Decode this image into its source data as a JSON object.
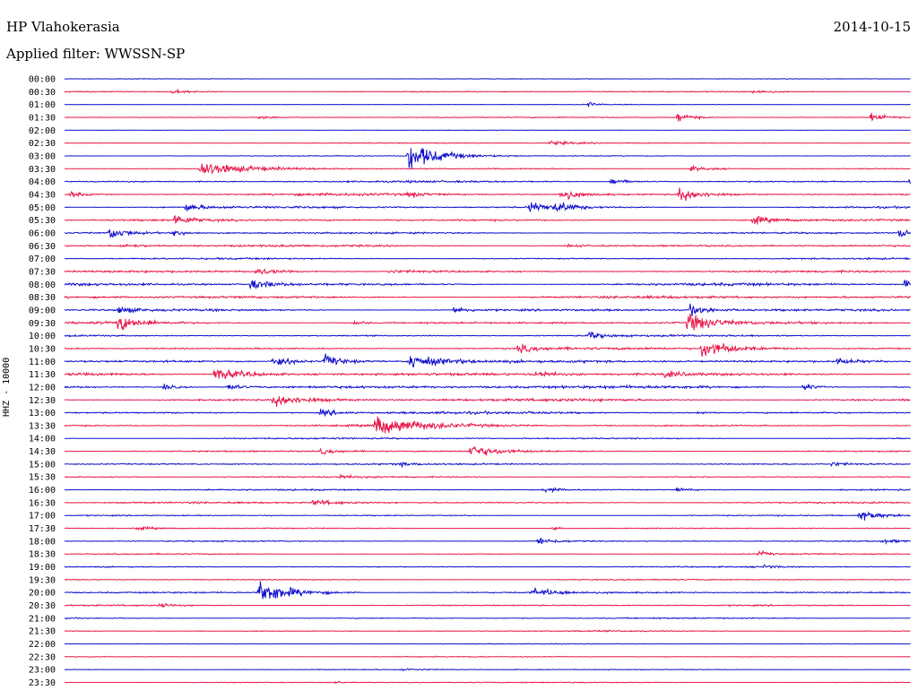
{
  "header": {
    "station": "HP Vlahokerasia",
    "date": "2014-10-15",
    "filter": "Applied filter: WWSSN-SP",
    "channel_label": "HHZ - 10000"
  },
  "colors": {
    "even": "#1010cc",
    "odd": "#e8184a",
    "text": "#000000"
  },
  "chart_data": {
    "type": "line",
    "title": "",
    "ylabel": "HHZ - 10000",
    "x_unit": "minutes into hour",
    "xlim": [
      0,
      30
    ],
    "rows": [
      "00:00",
      "00:30",
      "01:00",
      "01:30",
      "02:00",
      "02:30",
      "03:00",
      "03:30",
      "04:00",
      "04:30",
      "05:00",
      "05:30",
      "06:00",
      "06:30",
      "07:00",
      "07:30",
      "08:00",
      "08:30",
      "09:00",
      "09:30",
      "10:00",
      "10:30",
      "11:00",
      "11:30",
      "12:00",
      "12:30",
      "13:00",
      "13:30",
      "14:00",
      "14:30",
      "15:00",
      "15:30",
      "16:00",
      "16:30",
      "17:00",
      "17:30",
      "18:00",
      "18:30",
      "19:00",
      "19:30",
      "20:00",
      "20:30",
      "21:00",
      "21:30",
      "22:00",
      "22:30",
      "23:00",
      "23:30"
    ],
    "noise_level": [
      0.5,
      1.0,
      0.6,
      0.8,
      0.5,
      0.8,
      0.8,
      0.9,
      1.6,
      2.0,
      1.8,
      1.8,
      1.6,
      1.8,
      1.4,
      1.6,
      2.2,
      2.2,
      2.0,
      2.0,
      1.6,
      1.8,
      2.2,
      2.5,
      2.6,
      2.2,
      2.0,
      1.8,
      1.4,
      1.4,
      1.4,
      1.2,
      1.2,
      1.4,
      1.0,
      1.0,
      1.0,
      0.9,
      1.0,
      1.0,
      1.4,
      1.2,
      1.0,
      1.0,
      0.6,
      0.8,
      0.8,
      0.9
    ],
    "events": [
      {
        "row": 1,
        "t": 3.8,
        "a": 3,
        "d": 0.8
      },
      {
        "row": 1,
        "t": 24.4,
        "a": 3,
        "d": 0.6
      },
      {
        "row": 2,
        "t": 18.6,
        "a": 5,
        "d": 0.2
      },
      {
        "row": 3,
        "t": 6.9,
        "a": 3,
        "d": 0.5
      },
      {
        "row": 3,
        "t": 21.7,
        "a": 8,
        "d": 0.5
      },
      {
        "row": 3,
        "t": 28.6,
        "a": 7,
        "d": 0.5
      },
      {
        "row": 5,
        "t": 17.2,
        "a": 3,
        "d": 1.0
      },
      {
        "row": 6,
        "t": 12.2,
        "a": 22,
        "d": 1.0
      },
      {
        "row": 7,
        "t": 4.8,
        "a": 12,
        "d": 1.5
      },
      {
        "row": 7,
        "t": 22.2,
        "a": 4,
        "d": 0.8
      },
      {
        "row": 8,
        "t": 19.4,
        "a": 6,
        "d": 0.5
      },
      {
        "row": 8,
        "t": 30.0,
        "a": 10,
        "d": 0.6
      },
      {
        "row": 9,
        "t": 0.2,
        "a": 4,
        "d": 0.4
      },
      {
        "row": 9,
        "t": 12.2,
        "a": 4,
        "d": 0.4
      },
      {
        "row": 9,
        "t": 17.6,
        "a": 10,
        "d": 0.6
      },
      {
        "row": 9,
        "t": 21.8,
        "a": 12,
        "d": 0.6
      },
      {
        "row": 10,
        "t": 4.3,
        "a": 6,
        "d": 0.5
      },
      {
        "row": 10,
        "t": 16.5,
        "a": 9,
        "d": 0.6
      },
      {
        "row": 10,
        "t": 17.4,
        "a": 8,
        "d": 0.6
      },
      {
        "row": 11,
        "t": 3.9,
        "a": 8,
        "d": 0.5
      },
      {
        "row": 11,
        "t": 24.4,
        "a": 7,
        "d": 0.5
      },
      {
        "row": 12,
        "t": 1.6,
        "a": 10,
        "d": 0.5
      },
      {
        "row": 12,
        "t": 3.9,
        "a": 5,
        "d": 0.3
      },
      {
        "row": 12,
        "t": 29.6,
        "a": 9,
        "d": 0.4
      },
      {
        "row": 13,
        "t": 2.0,
        "a": 3,
        "d": 0.6
      },
      {
        "row": 13,
        "t": 17.8,
        "a": 3,
        "d": 0.5
      },
      {
        "row": 15,
        "t": 6.8,
        "a": 6,
        "d": 0.6
      },
      {
        "row": 15,
        "t": 11.5,
        "a": 2,
        "d": 1.5
      },
      {
        "row": 16,
        "t": 6.6,
        "a": 7,
        "d": 0.8
      },
      {
        "row": 16,
        "t": 29.8,
        "a": 6,
        "d": 0.6
      },
      {
        "row": 18,
        "t": 1.9,
        "a": 5,
        "d": 0.6
      },
      {
        "row": 18,
        "t": 13.8,
        "a": 5,
        "d": 0.5
      },
      {
        "row": 18,
        "t": 22.2,
        "a": 9,
        "d": 0.5
      },
      {
        "row": 19,
        "t": 1.9,
        "a": 12,
        "d": 0.6
      },
      {
        "row": 19,
        "t": 10.3,
        "a": 4,
        "d": 0.3
      },
      {
        "row": 19,
        "t": 22.1,
        "a": 15,
        "d": 0.8
      },
      {
        "row": 20,
        "t": 18.6,
        "a": 6,
        "d": 0.4
      },
      {
        "row": 21,
        "t": 16.1,
        "a": 6,
        "d": 0.6
      },
      {
        "row": 21,
        "t": 22.6,
        "a": 14,
        "d": 1.0
      },
      {
        "row": 22,
        "t": 7.4,
        "a": 10,
        "d": 0.6
      },
      {
        "row": 22,
        "t": 9.2,
        "a": 10,
        "d": 0.7
      },
      {
        "row": 22,
        "t": 12.2,
        "a": 12,
        "d": 0.9
      },
      {
        "row": 22,
        "t": 27.4,
        "a": 5,
        "d": 0.5
      },
      {
        "row": 23,
        "t": 5.3,
        "a": 10,
        "d": 1.2
      },
      {
        "row": 23,
        "t": 16.7,
        "a": 5,
        "d": 0.5
      },
      {
        "row": 23,
        "t": 21.3,
        "a": 5,
        "d": 0.5
      },
      {
        "row": 24,
        "t": 3.5,
        "a": 6,
        "d": 0.4
      },
      {
        "row": 24,
        "t": 5.8,
        "a": 5,
        "d": 0.4
      },
      {
        "row": 24,
        "t": 26.2,
        "a": 6,
        "d": 0.4
      },
      {
        "row": 25,
        "t": 7.4,
        "a": 10,
        "d": 0.9
      },
      {
        "row": 26,
        "t": 9.1,
        "a": 6,
        "d": 0.5
      },
      {
        "row": 26,
        "t": 22.4,
        "a": 3,
        "d": 0.3
      },
      {
        "row": 27,
        "t": 11.0,
        "a": 14,
        "d": 1.5
      },
      {
        "row": 29,
        "t": 9.1,
        "a": 4,
        "d": 0.6
      },
      {
        "row": 29,
        "t": 14.4,
        "a": 10,
        "d": 0.8
      },
      {
        "row": 30,
        "t": 11.8,
        "a": 3,
        "d": 0.4
      },
      {
        "row": 30,
        "t": 27.2,
        "a": 3,
        "d": 0.5
      },
      {
        "row": 31,
        "t": 9.8,
        "a": 3,
        "d": 0.4
      },
      {
        "row": 32,
        "t": 17.0,
        "a": 4,
        "d": 0.5
      },
      {
        "row": 32,
        "t": 21.7,
        "a": 3,
        "d": 0.5
      },
      {
        "row": 33,
        "t": 8.8,
        "a": 4,
        "d": 1.0
      },
      {
        "row": 34,
        "t": 28.2,
        "a": 8,
        "d": 0.7
      },
      {
        "row": 35,
        "t": 2.5,
        "a": 3,
        "d": 0.6
      },
      {
        "row": 35,
        "t": 17.3,
        "a": 3,
        "d": 0.3
      },
      {
        "row": 36,
        "t": 16.8,
        "a": 6,
        "d": 0.6
      },
      {
        "row": 36,
        "t": 29.0,
        "a": 3,
        "d": 0.5
      },
      {
        "row": 37,
        "t": 24.6,
        "a": 5,
        "d": 0.3
      },
      {
        "row": 38,
        "t": 24.8,
        "a": 3,
        "d": 0.3
      },
      {
        "row": 40,
        "t": 6.9,
        "a": 20,
        "d": 1.0
      },
      {
        "row": 40,
        "t": 16.6,
        "a": 6,
        "d": 0.8
      },
      {
        "row": 41,
        "t": 3.4,
        "a": 3,
        "d": 0.4
      },
      {
        "row": 46,
        "t": 11.9,
        "a": 2,
        "d": 0.6
      },
      {
        "row": 47,
        "t": 9.6,
        "a": 3,
        "d": 0.2
      }
    ]
  }
}
